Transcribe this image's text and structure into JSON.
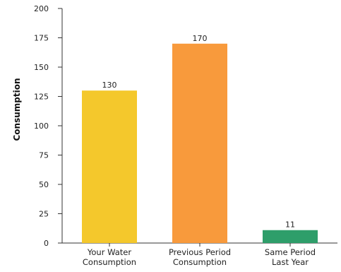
{
  "chart_data": {
    "type": "bar",
    "categories": [
      [
        "Your Water",
        "Consumption"
      ],
      [
        "Previous Period",
        "Consumption"
      ],
      [
        "Same Period",
        "Last Year"
      ]
    ],
    "values": [
      130,
      170,
      11
    ],
    "bar_colors": [
      "#f4c82c",
      "#f89a3c",
      "#2e9e6a"
    ],
    "ylabel": "Consumption",
    "xlabel": "",
    "ylim": [
      0,
      200
    ],
    "yticks": [
      0,
      25,
      50,
      75,
      100,
      125,
      150,
      175,
      200
    ],
    "grid": false,
    "legend": "none"
  }
}
